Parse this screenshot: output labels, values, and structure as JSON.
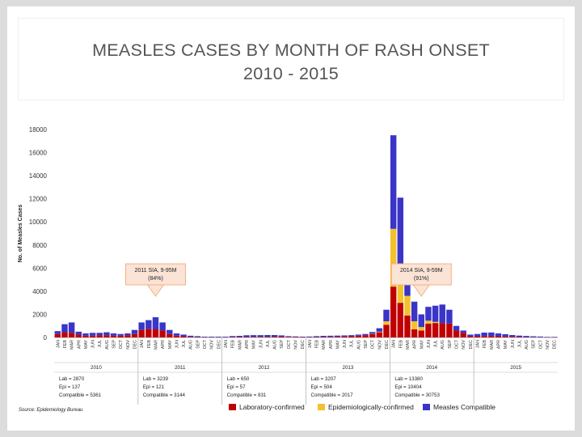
{
  "header": {
    "title_line1": "MEASLES CASES BY MONTH OF RASH ONSET",
    "title_line2": "2010 - 2015"
  },
  "colors": {
    "lab": "#c00000",
    "epi": "#f2c12e",
    "compat": "#3a35c8",
    "callout_fill": "#fbe3d6",
    "callout_border": "#f4b183"
  },
  "chart_data": {
    "type": "bar",
    "stacked": true,
    "ylabel": "No. of Measles Cases",
    "ylim": [
      0,
      18000
    ],
    "yticks": [
      0,
      2000,
      4000,
      6000,
      8000,
      10000,
      12000,
      14000,
      16000,
      18000
    ],
    "grid": false,
    "legend_position": "bottom",
    "month_labels": [
      "JAN",
      "FEB",
      "MAR",
      "APR",
      "MAY",
      "JUN",
      "JUL",
      "AUG",
      "SEP",
      "OCT",
      "NOV",
      "DEC"
    ],
    "years": [
      "2010",
      "2011",
      "2012",
      "2013",
      "2014",
      "2015"
    ],
    "series": [
      {
        "name": "Laboratory-confirmed",
        "color": "#c00000",
        "values": [
          300,
          450,
          400,
          250,
          150,
          150,
          200,
          200,
          150,
          150,
          200,
          300,
          650,
          750,
          700,
          600,
          300,
          150,
          100,
          50,
          30,
          20,
          20,
          20,
          20,
          40,
          40,
          40,
          50,
          50,
          60,
          60,
          80,
          50,
          40,
          30,
          20,
          30,
          40,
          50,
          60,
          80,
          100,
          150,
          200,
          300,
          450,
          1100,
          4400,
          3000,
          1900,
          700,
          600,
          1200,
          1250,
          1250,
          1200,
          600,
          400,
          100,
          100,
          120,
          130,
          100,
          80,
          60,
          40,
          30,
          20,
          20,
          10,
          10
        ]
      },
      {
        "name": "Epidemiologically-confirmed",
        "color": "#f2c12e",
        "values": [
          0,
          0,
          0,
          0,
          0,
          0,
          0,
          0,
          0,
          0,
          0,
          0,
          0,
          0,
          0,
          0,
          0,
          0,
          0,
          0,
          0,
          0,
          0,
          0,
          0,
          0,
          0,
          0,
          0,
          0,
          0,
          0,
          0,
          0,
          0,
          0,
          0,
          0,
          0,
          0,
          0,
          0,
          0,
          0,
          0,
          20,
          50,
          300,
          5000,
          3300,
          1700,
          700,
          300,
          250,
          100,
          0,
          0,
          0,
          0,
          0,
          0,
          0,
          0,
          0,
          0,
          0,
          0,
          0,
          0,
          0,
          0,
          0
        ]
      },
      {
        "name": "Measles Compatible",
        "color": "#3a35c8",
        "values": [
          250,
          700,
          900,
          250,
          200,
          250,
          200,
          250,
          200,
          150,
          150,
          350,
          650,
          750,
          1050,
          700,
          350,
          200,
          150,
          100,
          80,
          50,
          50,
          50,
          50,
          80,
          100,
          150,
          150,
          150,
          150,
          150,
          100,
          60,
          50,
          40,
          60,
          80,
          100,
          100,
          100,
          100,
          100,
          100,
          100,
          150,
          300,
          1000,
          8100,
          5800,
          2800,
          1700,
          1100,
          1200,
          1400,
          1600,
          1200,
          400,
          200,
          150,
          200,
          300,
          300,
          250,
          200,
          150,
          120,
          100,
          80,
          60,
          40,
          40
        ]
      }
    ],
    "year_summaries": [
      {
        "year": "2010",
        "lines": [
          "Lab = 2870",
          "Epi = 137",
          "Compatible = 5361"
        ]
      },
      {
        "year": "2011",
        "lines": [
          "Lab = 3239",
          "Epi = 121",
          "Compatible = 3144"
        ]
      },
      {
        "year": "2012",
        "lines": [
          "Lab = 650",
          "Epi = 57",
          "Compatible = 831"
        ]
      },
      {
        "year": "2013",
        "lines": [
          "Lab = 3207",
          "Epi = 504",
          "Compatible = 2017"
        ]
      },
      {
        "year": "2014",
        "lines": [
          "Lab = 13380",
          "Epi = 10404",
          "Compatible = 30753"
        ]
      }
    ],
    "annotations": [
      {
        "text_line1": "2011 SIA, 9-95M",
        "text_line2": "(84%)",
        "month_index": 14
      },
      {
        "text_line1": "2014 SIA, 9-59M",
        "text_line2": "(91%)",
        "month_index": 52
      }
    ],
    "source": "Source: Epidemiology Bureau"
  }
}
